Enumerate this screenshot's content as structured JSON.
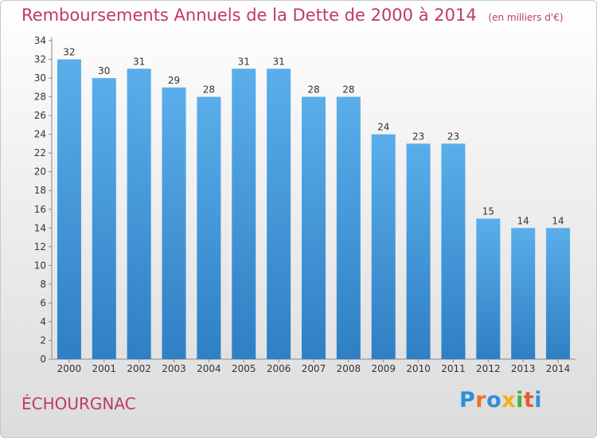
{
  "title": "Remboursements Annuels de la Dette de 2000 à 2014",
  "unit": "(en milliers d'€)",
  "commune": "ÉCHOURGNAC",
  "logo": {
    "letters": [
      "P",
      "r",
      "o",
      "x",
      "i",
      "t",
      "i"
    ],
    "colors": [
      "#2f8ed8",
      "#e8742a",
      "#2f8ed8",
      "#f3b01b",
      "#4cae3c",
      "#e85a2a",
      "#2f8ed8"
    ]
  },
  "colors": {
    "bar": "#4a9fe0",
    "bar_dark": "#3f8ed2",
    "title": "#c0386a"
  },
  "chart_data": {
    "type": "bar",
    "title": "Remboursements Annuels de la Dette de 2000 à 2014",
    "ylabel": "en milliers d'€",
    "xlabel": "",
    "categories": [
      "2000",
      "2001",
      "2002",
      "2003",
      "2004",
      "2005",
      "2006",
      "2007",
      "2008",
      "2009",
      "2010",
      "2011",
      "2012",
      "2013",
      "2014"
    ],
    "values": [
      32,
      30,
      31,
      29,
      28,
      31,
      31,
      28,
      28,
      24,
      23,
      23,
      15,
      14,
      14
    ],
    "ylim": [
      0,
      34
    ],
    "yticks": [
      "0",
      "2",
      "4",
      "6",
      "8",
      "10",
      "12",
      "14",
      "16",
      "18",
      "20",
      "22",
      "24",
      "26",
      "28",
      "30",
      "32",
      "34"
    ],
    "grid": false
  }
}
